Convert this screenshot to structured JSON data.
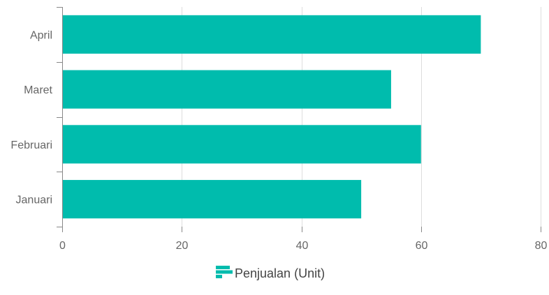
{
  "chart_data": {
    "type": "bar",
    "orientation": "horizontal",
    "categories": [
      "Januari",
      "Februari",
      "Maret",
      "April"
    ],
    "series": [
      {
        "name": "Penjualan (Unit)",
        "values": [
          50,
          60,
          55,
          70
        ]
      }
    ],
    "xlim": [
      0,
      80
    ],
    "x_ticks": [
      0,
      20,
      40,
      60,
      80
    ],
    "x_tick_labels": [
      "0",
      "20",
      "40",
      "60",
      "80"
    ],
    "grid": true,
    "legend_position": "bottom-center",
    "colors": {
      "bar": "#00bcad",
      "grid": "#dddddd",
      "axis": "#888888"
    }
  }
}
